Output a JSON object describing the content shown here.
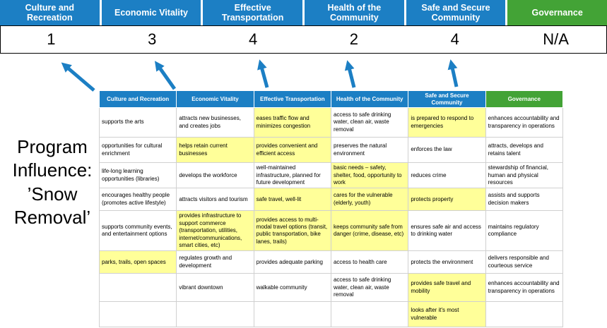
{
  "title": "Program Influence: ’Snow Removal’",
  "pillars": [
    {
      "label": "Culture and Recreation",
      "score": "1",
      "theme": "blue"
    },
    {
      "label": "Economic Vitality",
      "score": "3",
      "theme": "blue"
    },
    {
      "label": "Effective Transportation",
      "score": "4",
      "theme": "blue"
    },
    {
      "label": "Health of the Community",
      "score": "2",
      "theme": "blue"
    },
    {
      "label": "Safe and Secure Community",
      "score": "4",
      "theme": "blue"
    },
    {
      "label": "Governance",
      "score": "N/A",
      "theme": "green"
    }
  ],
  "matrix": {
    "headers": [
      {
        "label": "Culture and Recreation",
        "theme": "blue"
      },
      {
        "label": "Economic Vitality",
        "theme": "blue"
      },
      {
        "label": "Effective Transportation",
        "theme": "blue"
      },
      {
        "label": "Health of the Community",
        "theme": "blue"
      },
      {
        "label": "Safe and Secure Community",
        "theme": "blue"
      },
      {
        "label": "Governance",
        "theme": "green"
      }
    ],
    "rows": [
      [
        {
          "text": "supports the arts",
          "highlight": false
        },
        {
          "text": "attracts new businesses, and creates jobs",
          "highlight": false
        },
        {
          "text": "eases traffic flow and minimizes congestion",
          "highlight": true
        },
        {
          "text": "access to safe drinking water, clean air, waste removal",
          "highlight": false
        },
        {
          "text": "is prepared to respond to emergencies",
          "highlight": true
        },
        {
          "text": "enhances accountability and transparency in operations",
          "highlight": false
        }
      ],
      [
        {
          "text": "opportunities for cultural enrichment",
          "highlight": false
        },
        {
          "text": "helps retain current businesses",
          "highlight": true
        },
        {
          "text": "provides convenient and efficient access",
          "highlight": true
        },
        {
          "text": "preserves the natural environment",
          "highlight": false
        },
        {
          "text": "enforces the law",
          "highlight": false
        },
        {
          "text": "attracts, develops and retains talent",
          "highlight": false
        }
      ],
      [
        {
          "text": "life-long learning opportunities (libraries)",
          "highlight": false
        },
        {
          "text": "develops the workforce",
          "highlight": false
        },
        {
          "text": "well-maintained infrastructure, planned for future development",
          "highlight": false
        },
        {
          "text": "basic needs – safety, shelter, food, opportunity to work",
          "highlight": true
        },
        {
          "text": "reduces crime",
          "highlight": false
        },
        {
          "text": "stewardship of financial, human and physical resources",
          "highlight": false
        }
      ],
      [
        {
          "text": "encourages healthy people (promotes active lifestyle)",
          "highlight": false
        },
        {
          "text": "attracts visitors and tourism",
          "highlight": false
        },
        {
          "text": "safe travel, well-lit",
          "highlight": true
        },
        {
          "text": "cares for the vulnerable (elderly, youth)",
          "highlight": true
        },
        {
          "text": "protects property",
          "highlight": true
        },
        {
          "text": "assists and supports decision makers",
          "highlight": false
        }
      ],
      [
        {
          "text": "supports community events, and entertainment options",
          "highlight": false
        },
        {
          "text": "provides infrastructure to support commerce (transportation, utilities, internet/communications, smart cities, etc)",
          "highlight": true
        },
        {
          "text": "provides access to multi-modal travel options (transit, public transportation, bike lanes, trails)",
          "highlight": true
        },
        {
          "text": "keeps community safe from danger (crime, disease, etc)",
          "highlight": true
        },
        {
          "text": "ensures safe air and access to drinking water",
          "highlight": false
        },
        {
          "text": "maintains regulatory compliance",
          "highlight": false
        }
      ],
      [
        {
          "text": "parks, trails, open spaces",
          "highlight": true
        },
        {
          "text": "regulates growth and development",
          "highlight": false
        },
        {
          "text": "provides adequate parking",
          "highlight": false
        },
        {
          "text": "access to health care",
          "highlight": false
        },
        {
          "text": "protects the environment",
          "highlight": false
        },
        {
          "text": "delivers responsible and courteous service",
          "highlight": false
        }
      ],
      [
        {
          "text": "",
          "highlight": false
        },
        {
          "text": "vibrant downtown",
          "highlight": false
        },
        {
          "text": "walkable community",
          "highlight": false
        },
        {
          "text": "access to safe drinking water, clean air, waste removal",
          "highlight": false
        },
        {
          "text": "provides safe travel and mobility",
          "highlight": true
        },
        {
          "text": "enhances accountability and transparency in operations",
          "highlight": false
        }
      ],
      [
        {
          "text": "",
          "highlight": false
        },
        {
          "text": "",
          "highlight": false
        },
        {
          "text": "",
          "highlight": false
        },
        {
          "text": "",
          "highlight": false
        },
        {
          "text": "looks after it's most vulnerable",
          "highlight": true
        },
        {
          "text": "",
          "highlight": false
        }
      ]
    ]
  },
  "colors": {
    "pillar_blue": "#1C7FC4",
    "pillar_green": "#43A336",
    "highlight_yellow": "#FFFF99",
    "arrow_blue": "#1C7FC4",
    "score_border": "#000000"
  }
}
